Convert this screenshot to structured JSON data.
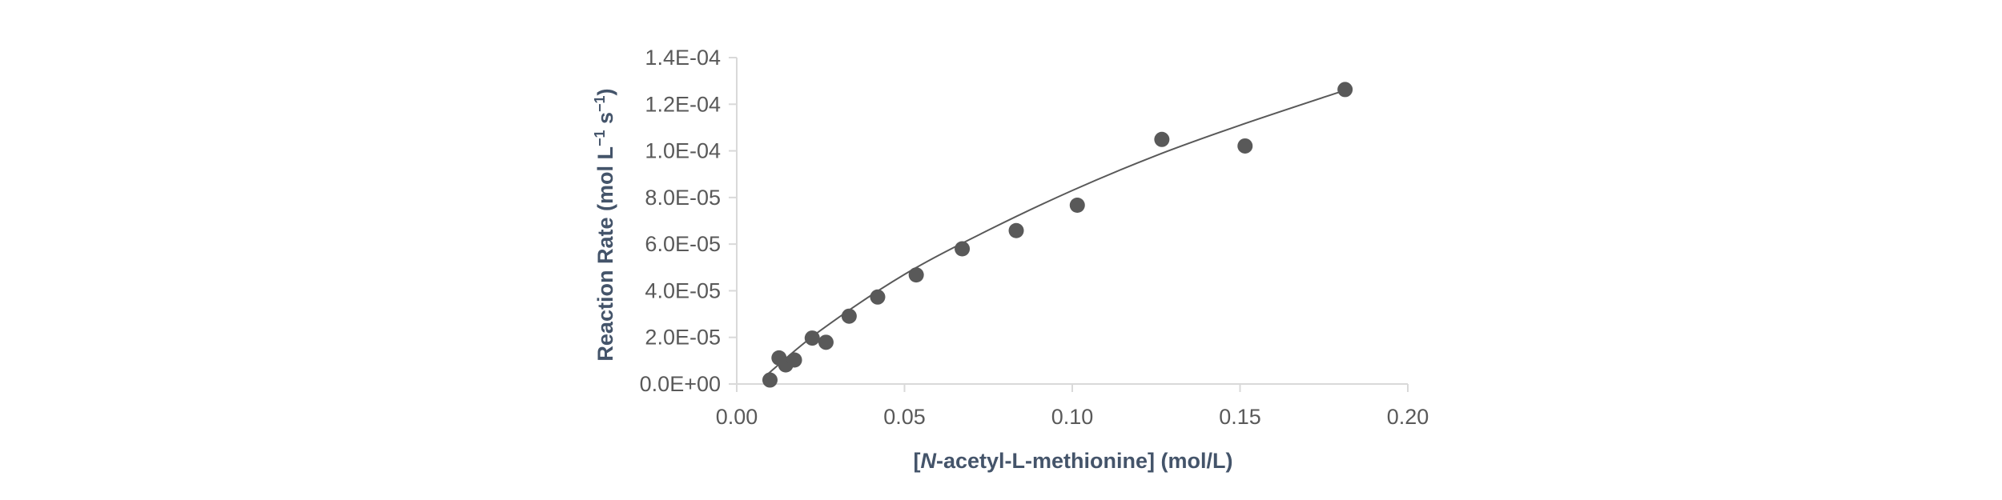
{
  "chart_data": {
    "type": "scatter",
    "title": "",
    "xlabel": {
      "parts": [
        {
          "text": "[",
          "italic": false
        },
        {
          "text": "N",
          "italic": true
        },
        {
          "text": "-acetyl-L-methionine] (mol/L)",
          "italic": false
        }
      ]
    },
    "ylabel": {
      "parts": [
        {
          "text": "Reaction Rate (mol L",
          "sup": false
        },
        {
          "text": "−1",
          "sup": true
        },
        {
          "text": " s",
          "sup": false
        },
        {
          "text": "−1",
          "sup": true
        },
        {
          "text": ")",
          "sup": false
        }
      ]
    },
    "xlim": [
      0,
      0.2
    ],
    "ylim": [
      0,
      0.00014
    ],
    "x_ticks": [
      0,
      0.05,
      0.1,
      0.15,
      0.2
    ],
    "x_tick_labels": [
      "0.00",
      "0.05",
      "0.10",
      "0.15",
      "0.20"
    ],
    "y_ticks": [
      0,
      2e-05,
      4e-05,
      6e-05,
      8e-05,
      0.0001,
      0.00012,
      0.00014
    ],
    "y_tick_labels": [
      "0.0E+00",
      "2.0E-05",
      "4.0E-05",
      "6.0E-05",
      "8.0E-05",
      "1.0E-04",
      "1.2E-04",
      "1.4E-04"
    ],
    "grid": false,
    "legend": "none",
    "series": [
      {
        "points": [
          [
            0.0099,
            1.7e-06
          ],
          [
            0.0126,
            1.12e-05
          ],
          [
            0.0146,
            8.2e-06
          ],
          [
            0.0172,
            1.03e-05
          ],
          [
            0.0225,
            1.97e-05
          ],
          [
            0.0266,
            1.79e-05
          ],
          [
            0.0335,
            2.91e-05
          ],
          [
            0.042,
            3.73e-05
          ],
          [
            0.0535,
            4.68e-05
          ],
          [
            0.0672,
            5.8e-05
          ],
          [
            0.0833,
            6.58e-05
          ],
          [
            0.1015,
            7.67e-05
          ],
          [
            0.1267,
            0.0001049
          ],
          [
            0.1515,
            0.0001021
          ],
          [
            0.1813,
            0.0001263
          ]
        ]
      }
    ],
    "trendline": {
      "type": "curve",
      "x": [
        0.009,
        0.025,
        0.05,
        0.075,
        0.1,
        0.125,
        0.15,
        0.1813
      ],
      "y": [
        4e-06,
        2.3e-05,
        4.7e-05,
        6.6e-05,
        8.3e-05,
        9.8e-05,
        0.000111,
        0.000126
      ]
    },
    "colors": {
      "points": "#595959",
      "trendline": "#595959",
      "axis": "#d9d9d9",
      "tick_labels": "#595959",
      "axis_titles": "#44546a"
    }
  }
}
